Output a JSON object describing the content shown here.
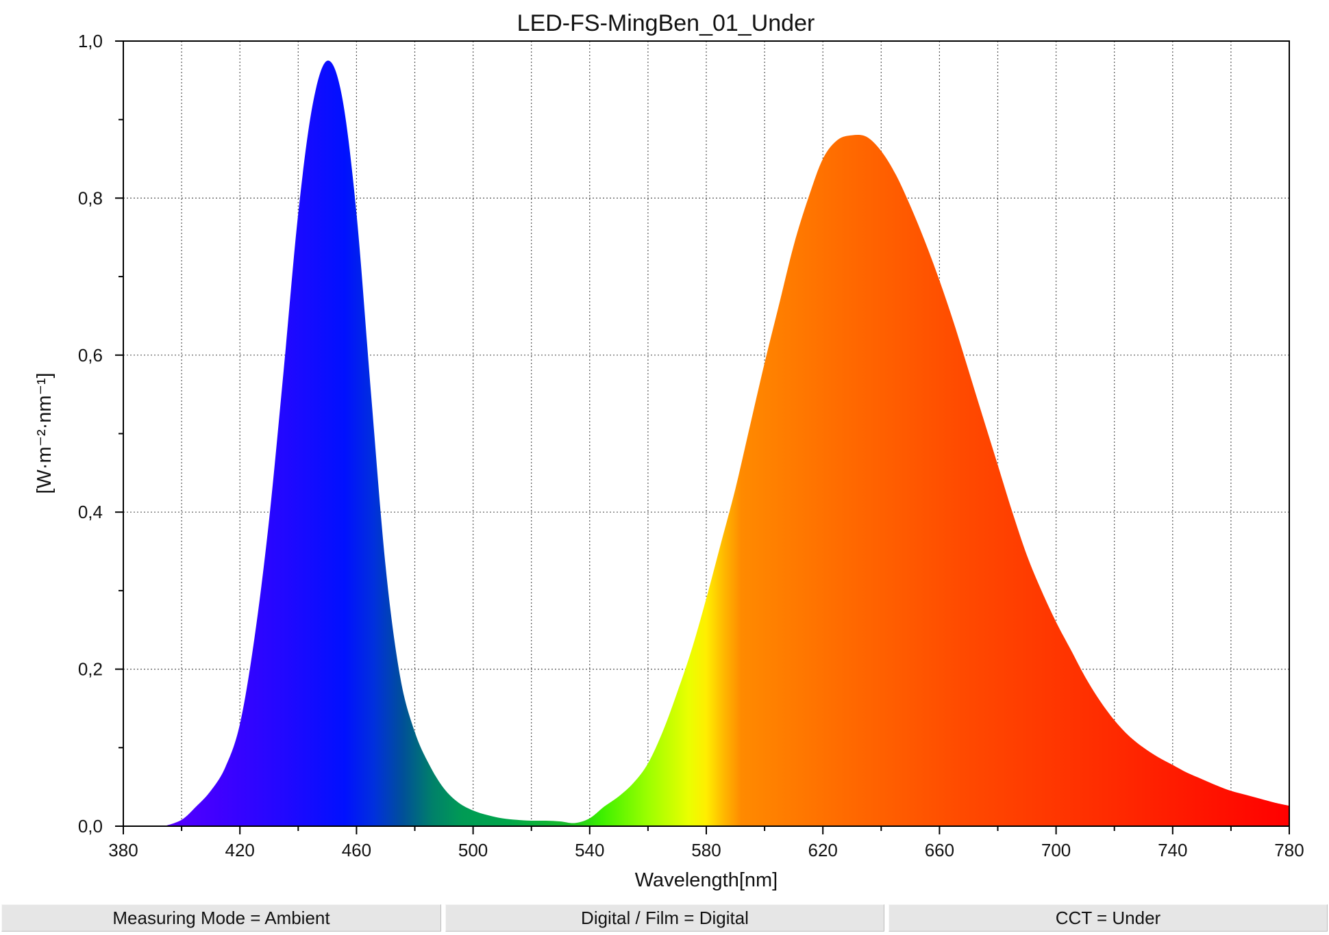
{
  "chart_data": {
    "type": "area",
    "title": "LED-FS-MingBen_01_Under",
    "xlabel": "Wavelength[nm]",
    "ylabel": "[W·m⁻²·nm⁻¹]",
    "xlim": [
      380,
      780
    ],
    "ylim": [
      0.0,
      1.0
    ],
    "x_ticks": [
      "380",
      "420",
      "460",
      "500",
      "540",
      "580",
      "620",
      "660",
      "700",
      "740",
      "780"
    ],
    "y_ticks": [
      "0,0",
      "0,2",
      "0,4",
      "0,6",
      "0,8",
      "1,0"
    ],
    "grid": true,
    "fill": "visible-spectrum colors by wavelength",
    "x": [
      394,
      400,
      405,
      410,
      415,
      420,
      425,
      430,
      435,
      440,
      445,
      450,
      455,
      460,
      465,
      470,
      475,
      480,
      485,
      490,
      495,
      500,
      505,
      510,
      515,
      520,
      525,
      530,
      535,
      540,
      545,
      550,
      555,
      560,
      565,
      570,
      575,
      580,
      585,
      590,
      595,
      600,
      605,
      610,
      615,
      620,
      625,
      630,
      635,
      640,
      645,
      650,
      655,
      660,
      665,
      670,
      675,
      680,
      685,
      690,
      695,
      700,
      705,
      710,
      715,
      720,
      725,
      730,
      735,
      740,
      745,
      750,
      755,
      760,
      765,
      770,
      775,
      780
    ],
    "y": [
      0.0,
      0.008,
      0.025,
      0.045,
      0.075,
      0.13,
      0.24,
      0.39,
      0.58,
      0.78,
      0.92,
      0.975,
      0.93,
      0.78,
      0.55,
      0.33,
      0.19,
      0.12,
      0.078,
      0.048,
      0.03,
      0.02,
      0.014,
      0.01,
      0.008,
      0.007,
      0.007,
      0.006,
      0.004,
      0.01,
      0.025,
      0.038,
      0.055,
      0.08,
      0.12,
      0.17,
      0.225,
      0.29,
      0.36,
      0.43,
      0.51,
      0.59,
      0.665,
      0.74,
      0.8,
      0.85,
      0.874,
      0.88,
      0.878,
      0.86,
      0.83,
      0.79,
      0.745,
      0.695,
      0.64,
      0.58,
      0.52,
      0.46,
      0.4,
      0.345,
      0.3,
      0.26,
      0.225,
      0.19,
      0.16,
      0.135,
      0.115,
      0.1,
      0.088,
      0.078,
      0.068,
      0.06,
      0.052,
      0.045,
      0.04,
      0.035,
      0.03,
      0.026
    ]
  },
  "status_bar": {
    "measuring_mode": "Measuring Mode = Ambient",
    "digital_film": "Digital / Film = Digital",
    "cct": "CCT = Under"
  }
}
